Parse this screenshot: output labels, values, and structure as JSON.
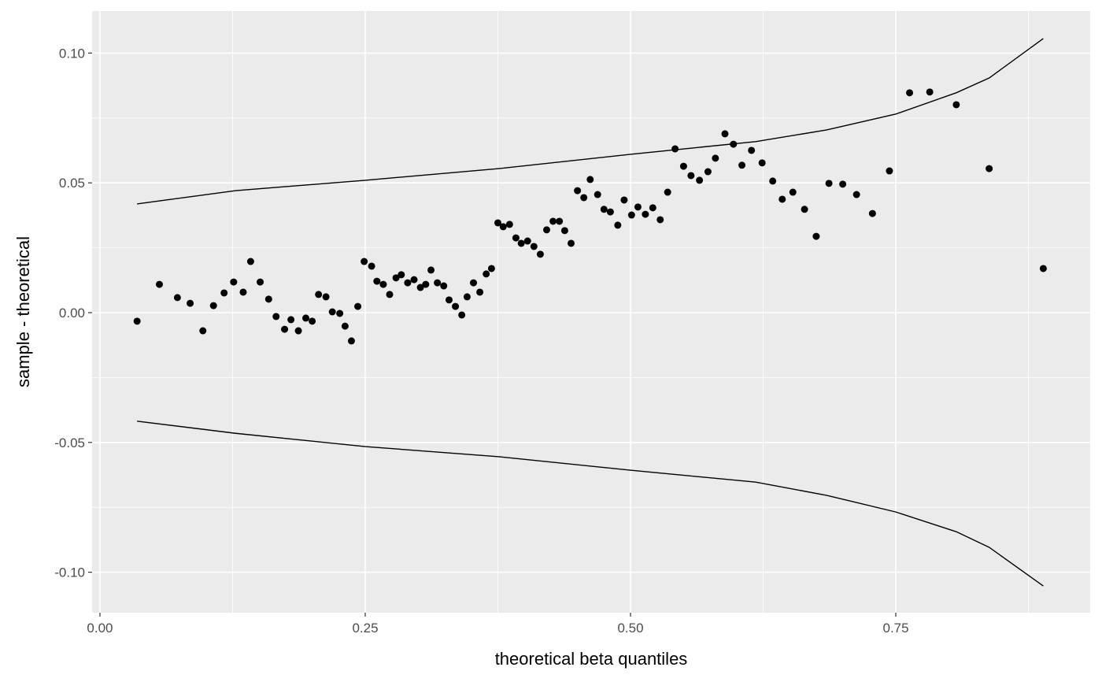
{
  "chart_data": {
    "type": "scatter",
    "x_label": "theoretical beta quantiles",
    "y_label": "sample - theoretical",
    "xlim": [
      -0.0074,
      0.9332
    ],
    "ylim": [
      -0.1156,
      0.1162
    ],
    "xticks": [
      {
        "value": 0,
        "label": "0.00"
      },
      {
        "value": 0.25,
        "label": "0.25"
      },
      {
        "value": 0.5,
        "label": "0.50"
      },
      {
        "value": 0.75,
        "label": "0.75"
      }
    ],
    "yticks": [
      {
        "value": -0.1,
        "label": "-0.10"
      },
      {
        "value": -0.05,
        "label": "-0.05"
      },
      {
        "value": 0,
        "label": "0.00"
      },
      {
        "value": 0.05,
        "label": "0.05"
      },
      {
        "value": 0.1,
        "label": "0.10"
      }
    ],
    "grid": true,
    "minor_grid": true,
    "panel_color": "#ebebeb",
    "point_color": "#000000",
    "line_color": "#000000",
    "points": {
      "x": [
        0.035,
        0.056,
        0.073,
        0.085,
        0.097,
        0.107,
        0.117,
        0.126,
        0.135,
        0.142,
        0.151,
        0.159,
        0.166,
        0.174,
        0.18,
        0.187,
        0.194,
        0.2,
        0.206,
        0.213,
        0.219,
        0.226,
        0.231,
        0.237,
        0.243,
        0.249,
        0.256,
        0.261,
        0.267,
        0.273,
        0.279,
        0.284,
        0.29,
        0.296,
        0.302,
        0.307,
        0.312,
        0.318,
        0.324,
        0.329,
        0.335,
        0.341,
        0.346,
        0.352,
        0.358,
        0.364,
        0.369,
        0.375,
        0.38,
        0.386,
        0.392,
        0.397,
        0.403,
        0.409,
        0.415,
        0.421,
        0.427,
        0.433,
        0.438,
        0.444,
        0.45,
        0.456,
        0.462,
        0.469,
        0.475,
        0.481,
        0.488,
        0.494,
        0.501,
        0.507,
        0.514,
        0.521,
        0.528,
        0.535,
        0.542,
        0.55,
        0.557,
        0.565,
        0.573,
        0.58,
        0.589,
        0.597,
        0.605,
        0.614,
        0.624,
        0.634,
        0.643,
        0.653,
        0.664,
        0.675,
        0.687,
        0.7,
        0.713,
        0.728,
        0.744,
        0.763,
        0.782,
        0.807,
        0.838,
        0.889
      ],
      "y": [
        -0.0033,
        0.0109,
        0.0058,
        0.0036,
        -0.007,
        0.0027,
        0.0076,
        0.0118,
        0.0079,
        0.0197,
        0.0118,
        0.0052,
        -0.0015,
        -0.0064,
        -0.0027,
        -0.007,
        -0.0021,
        -0.0033,
        0.007,
        0.0061,
        0.0003,
        -0.0003,
        -0.0052,
        -0.0109,
        0.0024,
        0.0197,
        0.0179,
        0.0121,
        0.0109,
        0.007,
        0.0134,
        0.0146,
        0.0115,
        0.0127,
        0.0097,
        0.0109,
        0.0164,
        0.0115,
        0.0103,
        0.0049,
        0.0024,
        -0.0009,
        0.0061,
        0.0115,
        0.0079,
        0.0149,
        0.017,
        0.0346,
        0.0331,
        0.034,
        0.0288,
        0.0267,
        0.0276,
        0.0255,
        0.0225,
        0.0319,
        0.0352,
        0.0352,
        0.0316,
        0.0267,
        0.047,
        0.0443,
        0.0513,
        0.0455,
        0.0398,
        0.0388,
        0.0337,
        0.0434,
        0.0376,
        0.0407,
        0.0379,
        0.0404,
        0.0358,
        0.0464,
        0.0631,
        0.0564,
        0.0528,
        0.051,
        0.0543,
        0.0595,
        0.0689,
        0.0649,
        0.0568,
        0.0625,
        0.0577,
        0.0507,
        0.0437,
        0.0464,
        0.0398,
        0.0294,
        0.0498,
        0.0495,
        0.0455,
        0.0382,
        0.0546,
        0.0847,
        0.085,
        0.0801,
        0.0555,
        0.017
      ]
    },
    "lines": [
      {
        "x": [
          0.035,
          0.128,
          0.25,
          0.376,
          0.5,
          0.618,
          0.685,
          0.75,
          0.807,
          0.838,
          0.889
        ],
        "y": [
          0.0419,
          0.047,
          0.051,
          0.0555,
          0.061,
          0.0659,
          0.0704,
          0.0765,
          0.0847,
          0.0904,
          0.1056
        ]
      },
      {
        "x": [
          0.035,
          0.128,
          0.25,
          0.376,
          0.5,
          0.618,
          0.685,
          0.75,
          0.807,
          0.838,
          0.889
        ],
        "y": [
          -0.0418,
          -0.0465,
          -0.0516,
          -0.0555,
          -0.0607,
          -0.0653,
          -0.0704,
          -0.0768,
          -0.0844,
          -0.0904,
          -0.1053
        ]
      }
    ]
  }
}
